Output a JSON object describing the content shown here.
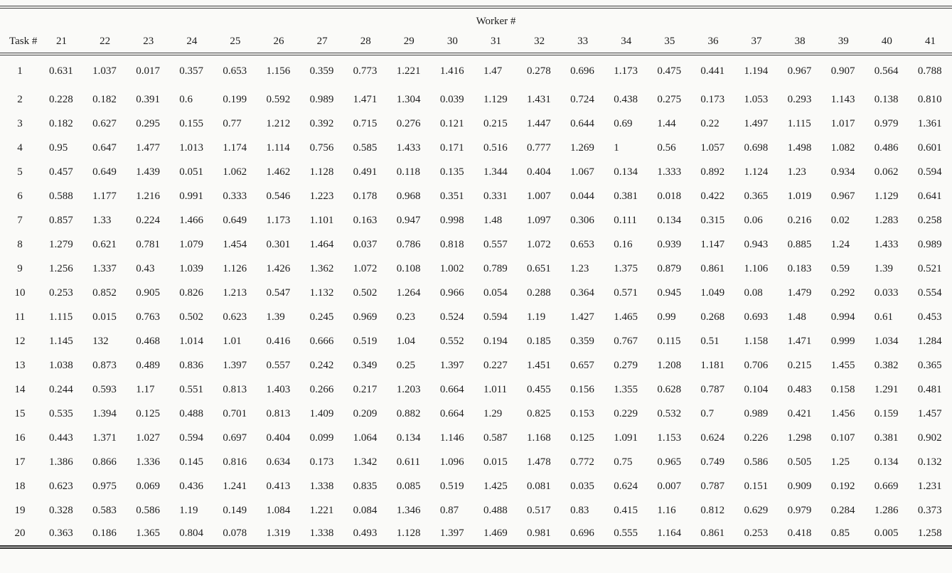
{
  "table": {
    "group_header": "Worker #",
    "corner_label": "Task #",
    "worker_columns": [
      "21",
      "22",
      "23",
      "24",
      "25",
      "26",
      "27",
      "28",
      "29",
      "30",
      "31",
      "32",
      "33",
      "34",
      "35",
      "36",
      "37",
      "38",
      "39",
      "40",
      "41"
    ],
    "rows": [
      {
        "task": "1",
        "values": [
          "0.631",
          "1.037",
          "0.017",
          "0.357",
          "0.653",
          "1.156",
          "0.359",
          "0.773",
          "1.221",
          "1.416",
          "1.47",
          "0.278",
          "0.696",
          "1.173",
          "0.475",
          "0.441",
          "1.194",
          "0.967",
          "0.907",
          "0.564",
          "0.788"
        ]
      },
      {
        "task": "2",
        "values": [
          "0.228",
          "0.182",
          "0.391",
          "0.6",
          "0.199",
          "0.592",
          "0.989",
          "1.471",
          "1.304",
          "0.039",
          "1.129",
          "1.431",
          "0.724",
          "0.438",
          "0.275",
          "0.173",
          "1.053",
          "0.293",
          "1.143",
          "0.138",
          "0.810"
        ]
      },
      {
        "task": "3",
        "values": [
          "0.182",
          "0.627",
          "0.295",
          "0.155",
          "0.77",
          "1.212",
          "0.392",
          "0.715",
          "0.276",
          "0.121",
          "0.215",
          "1.447",
          "0.644",
          "0.69",
          "1.44",
          "0.22",
          "1.497",
          "1.115",
          "1.017",
          "0.979",
          "1.361"
        ]
      },
      {
        "task": "4",
        "values": [
          "0.95",
          "0.647",
          "1.477",
          "1.013",
          "1.174",
          "1.114",
          "0.756",
          "0.585",
          "1.433",
          "0.171",
          "0.516",
          "0.777",
          "1.269",
          "1",
          "0.56",
          "1.057",
          "0.698",
          "1.498",
          "1.082",
          "0.486",
          "0.601"
        ]
      },
      {
        "task": "5",
        "values": [
          "0.457",
          "0.649",
          "1.439",
          "0.051",
          "1.062",
          "1.462",
          "1.128",
          "0.491",
          "0.118",
          "0.135",
          "1.344",
          "0.404",
          "1.067",
          "0.134",
          "1.333",
          "0.892",
          "1.124",
          "1.23",
          "0.934",
          "0.062",
          "0.594"
        ]
      },
      {
        "task": "6",
        "values": [
          "0.588",
          "1.177",
          "1.216",
          "0.991",
          "0.333",
          "0.546",
          "1.223",
          "0.178",
          "0.968",
          "0.351",
          "0.331",
          "1.007",
          "0.044",
          "0.381",
          "0.018",
          "0.422",
          "0.365",
          "1.019",
          "0.967",
          "1.129",
          "0.641"
        ]
      },
      {
        "task": "7",
        "values": [
          "0.857",
          "1.33",
          "0.224",
          "1.466",
          "0.649",
          "1.173",
          "1.101",
          "0.163",
          "0.947",
          "0.998",
          "1.48",
          "1.097",
          "0.306",
          "0.111",
          "0.134",
          "0.315",
          "0.06",
          "0.216",
          "0.02",
          "1.283",
          "0.258"
        ]
      },
      {
        "task": "8",
        "values": [
          "1.279",
          "0.621",
          "0.781",
          "1.079",
          "1.454",
          "0.301",
          "1.464",
          "0.037",
          "0.786",
          "0.818",
          "0.557",
          "1.072",
          "0.653",
          "0.16",
          "0.939",
          "1.147",
          "0.943",
          "0.885",
          "1.24",
          "1.433",
          "0.989"
        ]
      },
      {
        "task": "9",
        "values": [
          "1.256",
          "1.337",
          "0.43",
          "1.039",
          "1.126",
          "1.426",
          "1.362",
          "1.072",
          "0.108",
          "1.002",
          "0.789",
          "0.651",
          "1.23",
          "1.375",
          "0.879",
          "0.861",
          "1.106",
          "0.183",
          "0.59",
          "1.39",
          "0.521"
        ]
      },
      {
        "task": "10",
        "values": [
          "0.253",
          "0.852",
          "0.905",
          "0.826",
          "1.213",
          "0.547",
          "1.132",
          "0.502",
          "1.264",
          "0.966",
          "0.054",
          "0.288",
          "0.364",
          "0.571",
          "0.945",
          "1.049",
          "0.08",
          "1.479",
          "0.292",
          "0.033",
          "0.554"
        ]
      },
      {
        "task": "11",
        "values": [
          "1.115",
          "0.015",
          "0.763",
          "0.502",
          "0.623",
          "1.39",
          "0.245",
          "0.969",
          "0.23",
          "0.524",
          "0.594",
          "1.19",
          "1.427",
          "1.465",
          "0.99",
          "0.268",
          "0.693",
          "1.48",
          "0.994",
          "0.61",
          "0.453"
        ]
      },
      {
        "task": "12",
        "values": [
          "1.145",
          "132",
          "0.468",
          "1.014",
          "1.01",
          "0.416",
          "0.666",
          "0.519",
          "1.04",
          "0.552",
          "0.194",
          "0.185",
          "0.359",
          "0.767",
          "0.115",
          "0.51",
          "1.158",
          "1.471",
          "0.999",
          "1.034",
          "1.284"
        ]
      },
      {
        "task": "13",
        "values": [
          "1.038",
          "0.873",
          "0.489",
          "0.836",
          "1.397",
          "0.557",
          "0.242",
          "0.349",
          "0.25",
          "1.397",
          "0.227",
          "1.451",
          "0.657",
          "0.279",
          "1.208",
          "1.181",
          "0.706",
          "0.215",
          "1.455",
          "0.382",
          "0.365"
        ]
      },
      {
        "task": "14",
        "values": [
          "0.244",
          "0.593",
          "1.17",
          "0.551",
          "0.813",
          "1.403",
          "0.266",
          "0.217",
          "1.203",
          "0.664",
          "1.011",
          "0.455",
          "0.156",
          "1.355",
          "0.628",
          "0.787",
          "0.104",
          "0.483",
          "0.158",
          "1.291",
          "0.481"
        ]
      },
      {
        "task": "15",
        "values": [
          "0.535",
          "1.394",
          "0.125",
          "0.488",
          "0.701",
          "0.813",
          "1.409",
          "0.209",
          "0.882",
          "0.664",
          "1.29",
          "0.825",
          "0.153",
          "0.229",
          "0.532",
          "0.7",
          "0.989",
          "0.421",
          "1.456",
          "0.159",
          "1.457"
        ]
      },
      {
        "task": "16",
        "values": [
          "0.443",
          "1.371",
          "1.027",
          "0.594",
          "0.697",
          "0.404",
          "0.099",
          "1.064",
          "0.134",
          "1.146",
          "0.587",
          "1.168",
          "0.125",
          "1.091",
          "1.153",
          "0.624",
          "0.226",
          "1.298",
          "0.107",
          "0.381",
          "0.902"
        ]
      },
      {
        "task": "17",
        "values": [
          "1.386",
          "0.866",
          "1.336",
          "0.145",
          "0.816",
          "0.634",
          "0.173",
          "1.342",
          "0.611",
          "1.096",
          "0.015",
          "1.478",
          "0.772",
          "0.75",
          "0.965",
          "0.749",
          "0.586",
          "0.505",
          "1.25",
          "0.134",
          "0.132"
        ]
      },
      {
        "task": "18",
        "values": [
          "0.623",
          "0.975",
          "0.069",
          "0.436",
          "1.241",
          "0.413",
          "1.338",
          "0.835",
          "0.085",
          "0.519",
          "1.425",
          "0.081",
          "0.035",
          "0.624",
          "0.007",
          "0.787",
          "0.151",
          "0.909",
          "0.192",
          "0.669",
          "1.231"
        ]
      },
      {
        "task": "19",
        "values": [
          "0.328",
          "0.583",
          "0.586",
          "1.19",
          "0.149",
          "1.084",
          "1.221",
          "0.084",
          "1.346",
          "0.87",
          "0.488",
          "0.517",
          "0.83",
          "0.415",
          "1.16",
          "0.812",
          "0.629",
          "0.979",
          "0.284",
          "1.286",
          "0.373"
        ]
      },
      {
        "task": "20",
        "values": [
          "0.363",
          "0.186",
          "1.365",
          "0.804",
          "0.078",
          "1.319",
          "1.338",
          "0.493",
          "1.128",
          "1.397",
          "1.469",
          "0.981",
          "0.696",
          "0.555",
          "1.164",
          "0.861",
          "0.253",
          "0.418",
          "0.85",
          "0.005",
          "1.258"
        ]
      }
    ]
  },
  "colors": {
    "background": "#fafaf8",
    "text": "#1b1b1b",
    "rule": "#3c3c3c"
  }
}
